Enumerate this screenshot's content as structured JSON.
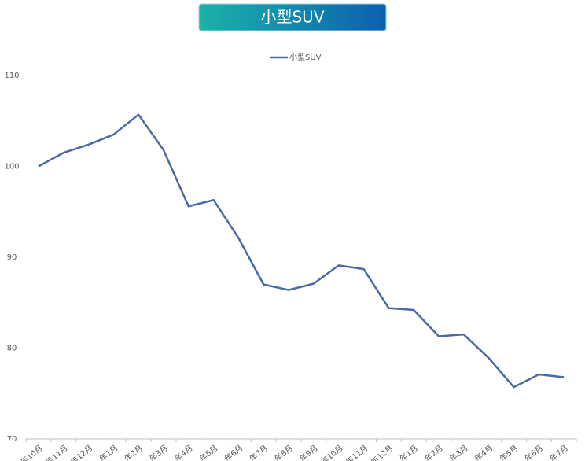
{
  "chart_data": {
    "type": "line",
    "title": "小型SUV",
    "categories": [
      "年10月",
      "年11月",
      "年12月",
      "年1月",
      "年2月",
      "年3月",
      "年4月",
      "年5月",
      "年6月",
      "年7月",
      "年8月",
      "年9月",
      "年10月",
      "年11月",
      "年12月",
      "年1月",
      "年2月",
      "年3月",
      "年4月",
      "年5月",
      "年6月",
      "年7月"
    ],
    "series": [
      {
        "name": "小型SUV",
        "color": "#4a6aa5",
        "values": [
          100,
          101.5,
          102.4,
          103.5,
          105.7,
          101.8,
          95.6,
          96.3,
          92.1,
          87.0,
          86.4,
          87.1,
          89.1,
          88.7,
          84.4,
          84.2,
          81.3,
          81.5,
          78.9,
          75.7,
          77.1,
          76.8
        ]
      }
    ],
    "ylim": [
      70,
      110
    ],
    "yticks": [
      70,
      80,
      90,
      100,
      110
    ],
    "grid": false,
    "legend": "top"
  }
}
